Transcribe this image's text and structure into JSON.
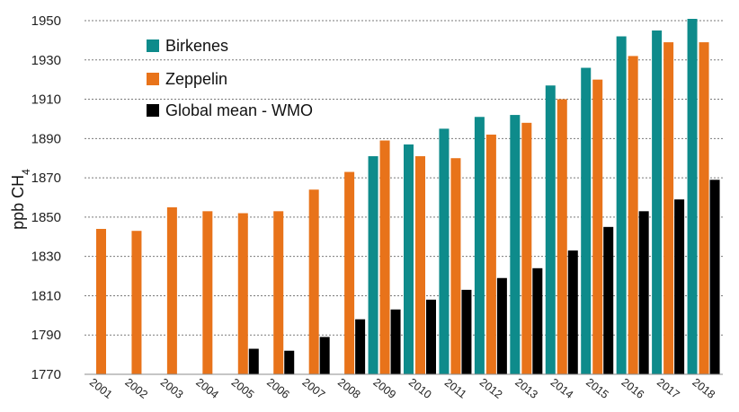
{
  "chart_data": {
    "type": "bar",
    "ylabel": "ppb CH",
    "ylabel_sub": "4",
    "ylim": [
      1770,
      1950
    ],
    "yticks": [
      1770,
      1790,
      1810,
      1830,
      1850,
      1870,
      1890,
      1910,
      1930,
      1950
    ],
    "grid": "horizontal dotted",
    "legend_position": "top-left",
    "categories": [
      "2001",
      "2002",
      "2003",
      "2004",
      "2005",
      "2006",
      "2007",
      "2008",
      "2009",
      "2010",
      "2011",
      "2012",
      "2013",
      "2014",
      "2015",
      "2016",
      "2017",
      "2018"
    ],
    "series": [
      {
        "name": "Birkenes",
        "color": "#0e8b8b",
        "values": [
          null,
          null,
          null,
          null,
          null,
          null,
          null,
          null,
          1881,
          1887,
          1895,
          1901,
          1902,
          1917,
          1926,
          1942,
          1945,
          1951
        ]
      },
      {
        "name": "Zeppelin",
        "color": "#e8731a",
        "values": [
          1844,
          1843,
          1855,
          1853,
          1852,
          1853,
          1864,
          1873,
          1889,
          1881,
          1880,
          1892,
          1898,
          1910,
          1920,
          1932,
          1939,
          1939
        ]
      },
      {
        "name": "Global mean - WMO",
        "color": "#000000",
        "values": [
          null,
          null,
          null,
          null,
          1783,
          1782,
          1789,
          1798,
          1803,
          1808,
          1813,
          1819,
          1824,
          1833,
          1845,
          1853,
          1859,
          1869
        ]
      }
    ]
  }
}
